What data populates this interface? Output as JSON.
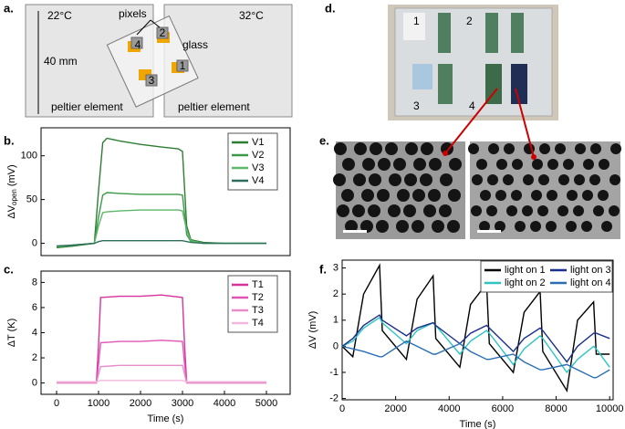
{
  "panels": {
    "a": "a.",
    "b": "b.",
    "c": "c.",
    "d": "d.",
    "e": "e.",
    "f": "f."
  },
  "panel_a": {
    "left_temp": "22°C",
    "right_temp": "32°C",
    "pixels": "pixels",
    "glass": "glass",
    "size": "40 mm",
    "left_element": "peltier element",
    "right_element": "peltier element",
    "pixel_numbers": [
      "1",
      "2",
      "3",
      "4"
    ]
  },
  "panel_d": {
    "labels": [
      "1",
      "2",
      "3",
      "4"
    ]
  },
  "chart_data": [
    {
      "type": "line",
      "y_label": "ΔV",
      "y_label_sub": "open",
      "y_label_unit": "(mV)",
      "x": [
        0,
        400,
        900,
        1000,
        1100,
        1200,
        1500,
        2000,
        2500,
        2900,
        3000,
        3100,
        3200,
        3500,
        4000,
        5000
      ],
      "xlim": [
        -370,
        5565
      ],
      "ylim": [
        -14,
        132
      ],
      "yticks": [
        0,
        50,
        100
      ],
      "legend": "upper right",
      "series": [
        {
          "name": "V1",
          "color": "#2e7d32",
          "values": [
            -5,
            -3,
            0,
            60,
            115,
            120,
            117,
            113,
            110,
            108,
            105,
            20,
            4,
            1,
            0,
            0
          ]
        },
        {
          "name": "V2",
          "color": "#3a9a47",
          "values": [
            -4,
            -2,
            0,
            30,
            55,
            58,
            57,
            56,
            56,
            56,
            55,
            10,
            2,
            0,
            0,
            0
          ]
        },
        {
          "name": "V3",
          "color": "#5cb86a",
          "values": [
            -4,
            -2,
            0,
            20,
            35,
            36,
            37,
            38,
            38,
            38,
            37,
            15,
            3,
            0,
            0,
            0
          ]
        },
        {
          "name": "V4",
          "color": "#2f6e5c",
          "values": [
            -3,
            -2,
            0,
            2,
            3,
            3,
            3,
            3,
            3,
            3,
            3,
            2,
            1,
            0,
            0,
            0
          ]
        }
      ]
    },
    {
      "type": "line",
      "y_label": "ΔT (K)",
      "x_label": "Time (s)",
      "x": [
        0,
        500,
        950,
        1000,
        1050,
        1500,
        2000,
        2500,
        3000,
        3050,
        3100,
        3500,
        4000,
        4500,
        5000
      ],
      "xlim": [
        -370,
        5565
      ],
      "ylim": [
        -0.9,
        8.9
      ],
      "xticks": [
        0,
        1000,
        2000,
        3000,
        4000,
        5000
      ],
      "yticks": [
        0,
        2,
        4,
        6,
        8
      ],
      "legend": "upper right",
      "series": [
        {
          "name": "T1",
          "color": "#d6339f",
          "values": [
            0.1,
            0.1,
            0.1,
            3,
            6.8,
            6.9,
            6.9,
            7.0,
            6.8,
            3,
            0.1,
            0.1,
            0.1,
            0.1,
            0.1
          ]
        },
        {
          "name": "T2",
          "color": "#e055b5",
          "values": [
            0,
            0,
            0,
            1.5,
            3.2,
            3.3,
            3.3,
            3.4,
            3.3,
            1.5,
            0,
            0,
            0,
            0,
            0
          ]
        },
        {
          "name": "T3",
          "color": "#e98ccb",
          "values": [
            0,
            0,
            0,
            0.7,
            1.3,
            1.4,
            1.4,
            1.4,
            1.4,
            0.7,
            0,
            0,
            0,
            0,
            0
          ]
        },
        {
          "name": "T4",
          "color": "#f2b8de",
          "values": [
            0.1,
            0.1,
            0.1,
            0.15,
            0.2,
            0.2,
            0.2,
            0.2,
            0.2,
            0.15,
            0.1,
            0.1,
            0.1,
            0.1,
            0.1
          ]
        }
      ]
    },
    {
      "type": "line",
      "y_label": "ΔV (mV)",
      "x_label": "Time (s)",
      "x": [
        0,
        400,
        800,
        1400,
        1500,
        2400,
        2800,
        3400,
        3500,
        4400,
        4800,
        5400,
        5500,
        6400,
        6800,
        7400,
        7500,
        8400,
        8800,
        9400,
        9500,
        10000
      ],
      "xlim": [
        0,
        10130
      ],
      "ylim": [
        -2.05,
        3.3
      ],
      "xticks": [
        0,
        2000,
        4000,
        6000,
        8000,
        10000
      ],
      "yticks": [
        -2,
        -1,
        0,
        1,
        2,
        3
      ],
      "legend": "upper right",
      "series": [
        {
          "name": "light on 1",
          "color": "#000000",
          "values": [
            0,
            -0.4,
            2.0,
            3.1,
            0.6,
            -0.5,
            1.8,
            2.7,
            0.3,
            -0.8,
            1.6,
            2.4,
            0.1,
            -1.0,
            1.3,
            2.1,
            -0.2,
            -1.7,
            1.0,
            1.7,
            -0.3,
            -0.3
          ]
        },
        {
          "name": "light on 2",
          "color": "#2ec4c4",
          "values": [
            0,
            0.2,
            0.7,
            1.1,
            0.9,
            0.1,
            0.6,
            0.9,
            0.8,
            -0.3,
            0.2,
            0.6,
            0.5,
            -0.7,
            -0.1,
            0.4,
            0.3,
            -1.0,
            -0.5,
            0.0,
            -0.1,
            -0.8
          ]
        },
        {
          "name": "light on 3",
          "color": "#1a2f8a",
          "values": [
            0,
            0.3,
            0.8,
            1.2,
            1.0,
            0.4,
            0.7,
            0.9,
            0.8,
            0.1,
            0.5,
            0.8,
            0.7,
            -0.2,
            0.3,
            0.7,
            0.6,
            -0.6,
            0.0,
            0.5,
            0.5,
            0.3
          ]
        },
        {
          "name": "light on 4",
          "color": "#2a6fb5",
          "values": [
            0,
            -0.1,
            -0.2,
            -0.4,
            -0.4,
            0.2,
            0.0,
            -0.3,
            -0.3,
            0.1,
            -0.2,
            -0.5,
            -0.5,
            -0.3,
            -0.6,
            -0.9,
            -0.9,
            -0.7,
            -0.9,
            -1.2,
            -1.2,
            -0.9
          ]
        }
      ]
    }
  ]
}
